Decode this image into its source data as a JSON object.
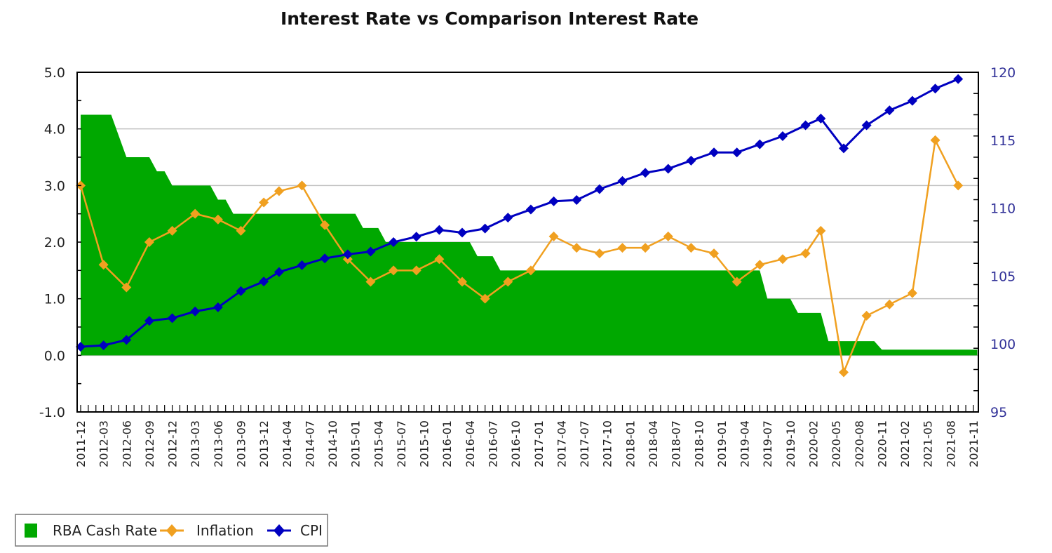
{
  "chart_data": {
    "type": "line",
    "title": "Interest Rate vs Comparison Interest Rate",
    "xlabel": "",
    "ylabel_left": "",
    "ylabel_right": "",
    "ylim_left": [
      -1.0,
      5.0
    ],
    "ylim_right": [
      95,
      120
    ],
    "yticks_left": [
      "5.0",
      "4.0",
      "3.0",
      "2.0",
      "1.0",
      "0.0",
      "-1.0"
    ],
    "yticks_right": [
      "120",
      "115",
      "110",
      "105",
      "100",
      "95"
    ],
    "grid": true,
    "legend_position": "bottom-left",
    "x_tick_count": 118,
    "x_label_every": 3,
    "categories": [
      "2011-12",
      "2012-03",
      "2012-06",
      "2012-09",
      "2012-12",
      "2013-03",
      "2013-06",
      "2013-09",
      "2013-12",
      "2014-04",
      "2014-07",
      "2014-10",
      "2015-01",
      "2015-04",
      "2015-07",
      "2015-10",
      "2016-01",
      "2016-04",
      "2016-07",
      "2016-10",
      "2017-01",
      "2017-04",
      "2017-07",
      "2017-10",
      "2018-01",
      "2018-04",
      "2018-07",
      "2018-10",
      "2019-01",
      "2019-04",
      "2019-07",
      "2019-10",
      "2020-02",
      "2020-05",
      "2020-08",
      "2020-11",
      "2021-02",
      "2021-05",
      "2021-08",
      "2021-11"
    ],
    "series": [
      {
        "name": "RBA Cash Rate",
        "type": "area",
        "axis": "left",
        "color": "#00a800",
        "points": [
          [
            0,
            4.25
          ],
          [
            4,
            4.25
          ],
          [
            6,
            3.5
          ],
          [
            9,
            3.5
          ],
          [
            10,
            3.25
          ],
          [
            11,
            3.25
          ],
          [
            12,
            3.0
          ],
          [
            17,
            3.0
          ],
          [
            18,
            2.75
          ],
          [
            19,
            2.75
          ],
          [
            20,
            2.5
          ],
          [
            36,
            2.5
          ],
          [
            37,
            2.25
          ],
          [
            39,
            2.25
          ],
          [
            40,
            2.0
          ],
          [
            51,
            2.0
          ],
          [
            52,
            1.75
          ],
          [
            54,
            1.75
          ],
          [
            55,
            1.5
          ],
          [
            89,
            1.5
          ],
          [
            90,
            1.0
          ],
          [
            93,
            1.0
          ],
          [
            94,
            0.75
          ],
          [
            97,
            0.75
          ],
          [
            98,
            0.25
          ],
          [
            104,
            0.25
          ],
          [
            105,
            0.1
          ],
          [
            117.5,
            0.1
          ]
        ]
      },
      {
        "name": "Inflation",
        "type": "line",
        "axis": "left",
        "color": "#f0a020",
        "x": [
          0,
          3,
          6,
          9,
          12,
          15,
          18,
          21,
          24,
          26,
          29,
          32,
          35,
          38,
          41,
          44,
          47,
          50,
          53,
          56,
          59,
          62,
          65,
          68,
          71,
          74,
          77,
          80,
          83,
          86,
          89,
          92,
          95,
          97,
          100,
          103,
          106,
          109,
          112,
          115
        ],
        "values": [
          3.0,
          1.6,
          1.2,
          2.0,
          2.2,
          2.5,
          2.4,
          2.2,
          2.7,
          2.9,
          3.0,
          2.3,
          1.7,
          1.3,
          1.5,
          1.5,
          1.7,
          1.3,
          1.0,
          1.3,
          1.5,
          2.1,
          1.9,
          1.8,
          1.9,
          1.9,
          2.1,
          1.9,
          1.8,
          1.3,
          1.6,
          1.7,
          1.8,
          2.2,
          -0.3,
          0.7,
          0.9,
          1.1,
          3.8,
          3.0
        ]
      },
      {
        "name": "CPI",
        "type": "line",
        "axis": "right",
        "color": "#0000c0",
        "x": [
          0,
          3,
          6,
          9,
          12,
          15,
          18,
          21,
          24,
          26,
          29,
          32,
          35,
          38,
          41,
          44,
          47,
          50,
          53,
          56,
          59,
          62,
          65,
          68,
          71,
          74,
          77,
          80,
          83,
          86,
          89,
          92,
          95,
          97,
          100,
          103,
          106,
          109,
          112,
          115
        ],
        "values": [
          99.8,
          99.9,
          100.3,
          101.7,
          101.9,
          102.4,
          102.7,
          103.9,
          104.6,
          105.3,
          105.8,
          106.3,
          106.6,
          106.8,
          107.5,
          107.9,
          108.4,
          108.2,
          108.5,
          109.3,
          109.9,
          110.5,
          110.6,
          111.4,
          112.0,
          112.6,
          112.9,
          113.5,
          114.1,
          114.1,
          114.7,
          115.3,
          116.1,
          116.6,
          114.4,
          116.1,
          117.2,
          117.9,
          118.8,
          119.5
        ]
      }
    ]
  }
}
